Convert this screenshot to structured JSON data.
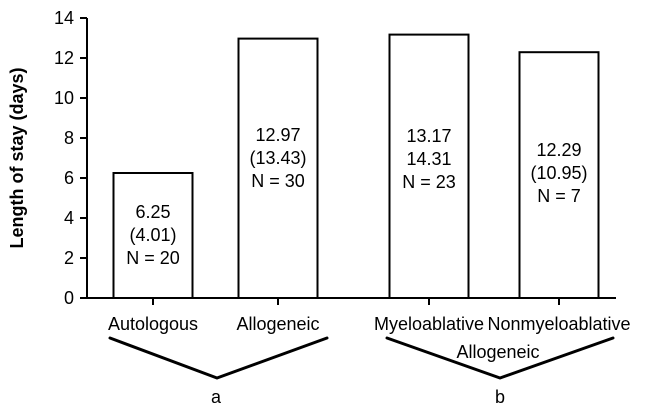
{
  "chart_data": {
    "type": "bar",
    "title": "",
    "xlabel": "",
    "ylabel": "Length of stay (days)",
    "ylim": [
      0,
      14
    ],
    "y_ticks": [
      0,
      2,
      4,
      6,
      8,
      10,
      12,
      14
    ],
    "grid": false,
    "legend": "none",
    "categories": [
      "Autologous",
      "Allogeneic",
      "Myeloablative",
      "Nonmyeloablative"
    ],
    "values": [
      6.25,
      12.97,
      13.17,
      12.29
    ],
    "bar_labels": [
      [
        "6.25",
        "(4.01)",
        "N = 20"
      ],
      [
        "12.97",
        "(13.43)",
        "N = 30"
      ],
      [
        "13.17",
        "14.31",
        "N = 23"
      ],
      [
        "12.29",
        "(10.95)",
        "N = 7"
      ]
    ],
    "groupings": [
      {
        "label": "a",
        "categories": [
          "Autologous",
          "Allogeneic"
        ]
      },
      {
        "label": "b",
        "subtitle": "Allogeneic",
        "categories": [
          "Myeloablative",
          "Nonmyeloablative"
        ]
      }
    ]
  }
}
